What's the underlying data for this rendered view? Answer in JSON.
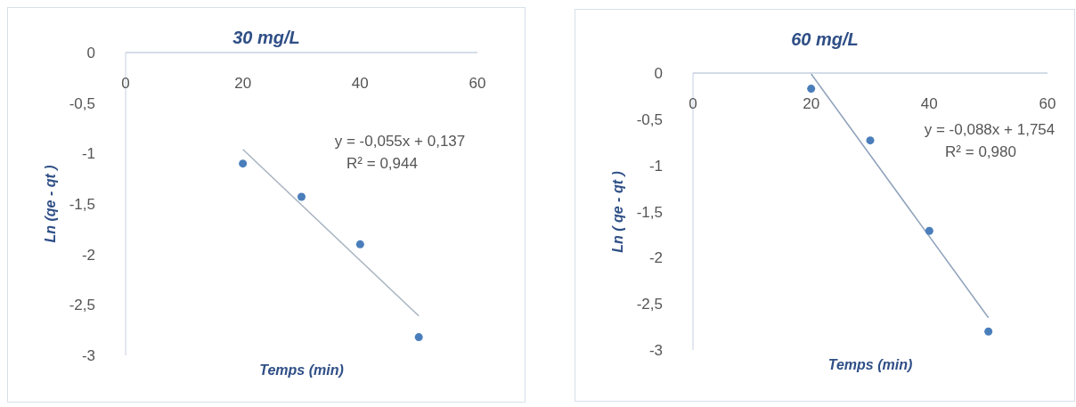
{
  "chart_data": [
    {
      "type": "scatter",
      "title": "30 mg/L",
      "xlabel": "Temps (min)",
      "ylabel": "Ln (qe - qt )",
      "xlim": [
        0,
        60
      ],
      "xticks": [
        0,
        20,
        40,
        60
      ],
      "ylim": [
        -3,
        0
      ],
      "yticks": [
        0,
        {
          "value": -0.5,
          "label": "-0,5"
        },
        -1,
        {
          "value": -1.5,
          "label": "-1,5"
        },
        -2,
        {
          "value": -2.5,
          "label": "-2,5"
        },
        -3
      ],
      "grid": false,
      "marker": "circle",
      "annotations": [
        "y = -0,055x + 0,137",
        "R² = 0,944"
      ],
      "series": [
        {
          "color": "#4a7ebb",
          "x": [
            20,
            30,
            40,
            50
          ],
          "values": [
            -1.1,
            -1.43,
            -1.9,
            -2.82
          ]
        },
        {
          "type": "line",
          "marker": "none",
          "color": "#a9b4c2",
          "x": [
            20,
            50
          ],
          "values": [
            -0.96,
            -2.61
          ]
        }
      ]
    },
    {
      "type": "scatter",
      "title": "60 mg/L",
      "xlabel": "Temps (min)",
      "ylabel": "Ln ( qe - qt )",
      "xlim": [
        0,
        60
      ],
      "xticks": [
        0,
        20,
        40,
        60
      ],
      "ylim": [
        -3,
        0
      ],
      "yticks": [
        0,
        {
          "value": -0.5,
          "label": "-0,5"
        },
        -1,
        {
          "value": -1.5,
          "label": "-1,5"
        },
        -2,
        {
          "value": -2.5,
          "label": "-2,5"
        },
        -3
      ],
      "grid": false,
      "marker": "circle",
      "annotations": [
        "y = -0,088x + 1,754",
        "R² = 0,980"
      ],
      "series": [
        {
          "color": "#4a7ebb",
          "x": [
            20,
            30,
            40,
            50
          ],
          "values": [
            -0.17,
            -0.73,
            -1.71,
            -2.8
          ]
        },
        {
          "type": "line",
          "marker": "none",
          "color": "#8fa2bb",
          "x": [
            20,
            50
          ],
          "values": [
            -0.01,
            -2.65
          ]
        }
      ]
    }
  ]
}
